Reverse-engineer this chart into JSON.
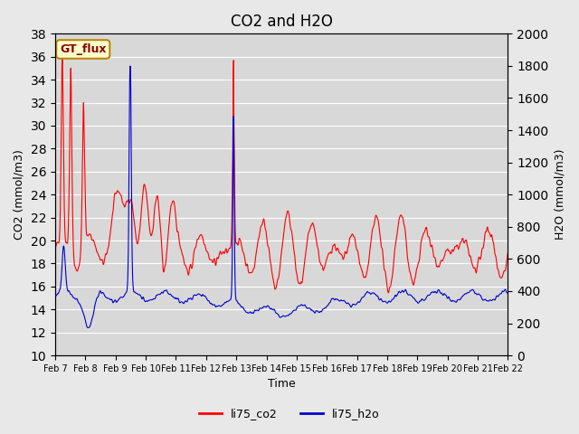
{
  "title": "CO2 and H2O",
  "xlabel": "Time",
  "ylabel_left": "CO2 (mmol/m3)",
  "ylabel_right": "H2O (mmol/m3)",
  "annotation": "GT_flux",
  "co2_color": "#FF0000",
  "h2o_color": "#0000CC",
  "ylim_left": [
    10,
    38
  ],
  "ylim_right": [
    0,
    2000
  ],
  "yticks_left": [
    10,
    12,
    14,
    16,
    18,
    20,
    22,
    24,
    26,
    28,
    30,
    32,
    34,
    36,
    38
  ],
  "yticks_right": [
    0,
    200,
    400,
    600,
    800,
    1000,
    1200,
    1400,
    1600,
    1800,
    2000
  ],
  "background_color": "#E8E8E8",
  "plot_bg_color": "#D8D8D8",
  "legend_labels": [
    "li75_co2",
    "li75_h2o"
  ],
  "x_tick_labels": [
    "Feb 7",
    "Feb 8",
    "Feb 9",
    "Feb 10",
    "Feb 11",
    "Feb 12",
    "Feb 13",
    "Feb 14",
    "Feb 15",
    "Feb 16",
    "Feb 17",
    "Feb 18",
    "Feb 19",
    "Feb 20",
    "Feb 21",
    "Feb 22"
  ],
  "n_days": 16
}
